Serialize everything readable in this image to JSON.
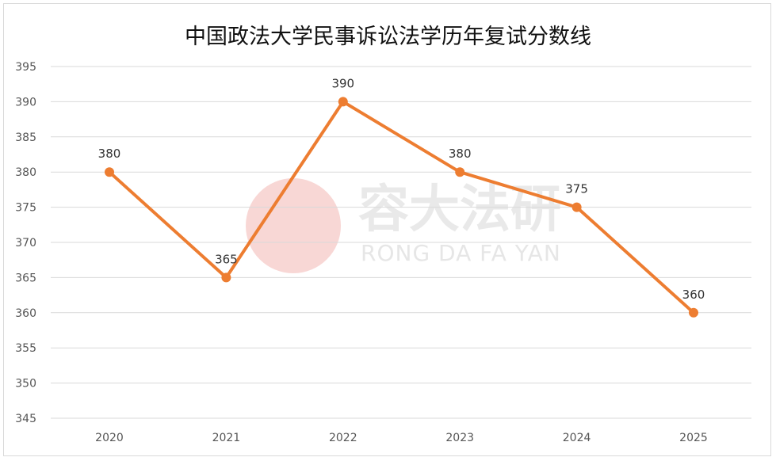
{
  "chart_data": {
    "type": "line",
    "title": "中国政法大学民事诉讼法学历年复试分数线",
    "categories": [
      "2020",
      "2021",
      "2022",
      "2023",
      "2024",
      "2025"
    ],
    "series": [
      {
        "values": [
          380,
          365,
          390,
          380,
          375,
          360
        ],
        "color": "#ED7D31"
      }
    ],
    "ylim": [
      345,
      395
    ],
    "yticks": [
      395,
      390,
      385,
      380,
      375,
      370,
      365,
      360,
      355,
      350,
      345
    ],
    "data_labels": true,
    "grid": true
  },
  "watermark": {
    "text_cn": "容大法研",
    "text_en": "RONG DA FA YAN",
    "logo_color": "#f2b7b3"
  }
}
